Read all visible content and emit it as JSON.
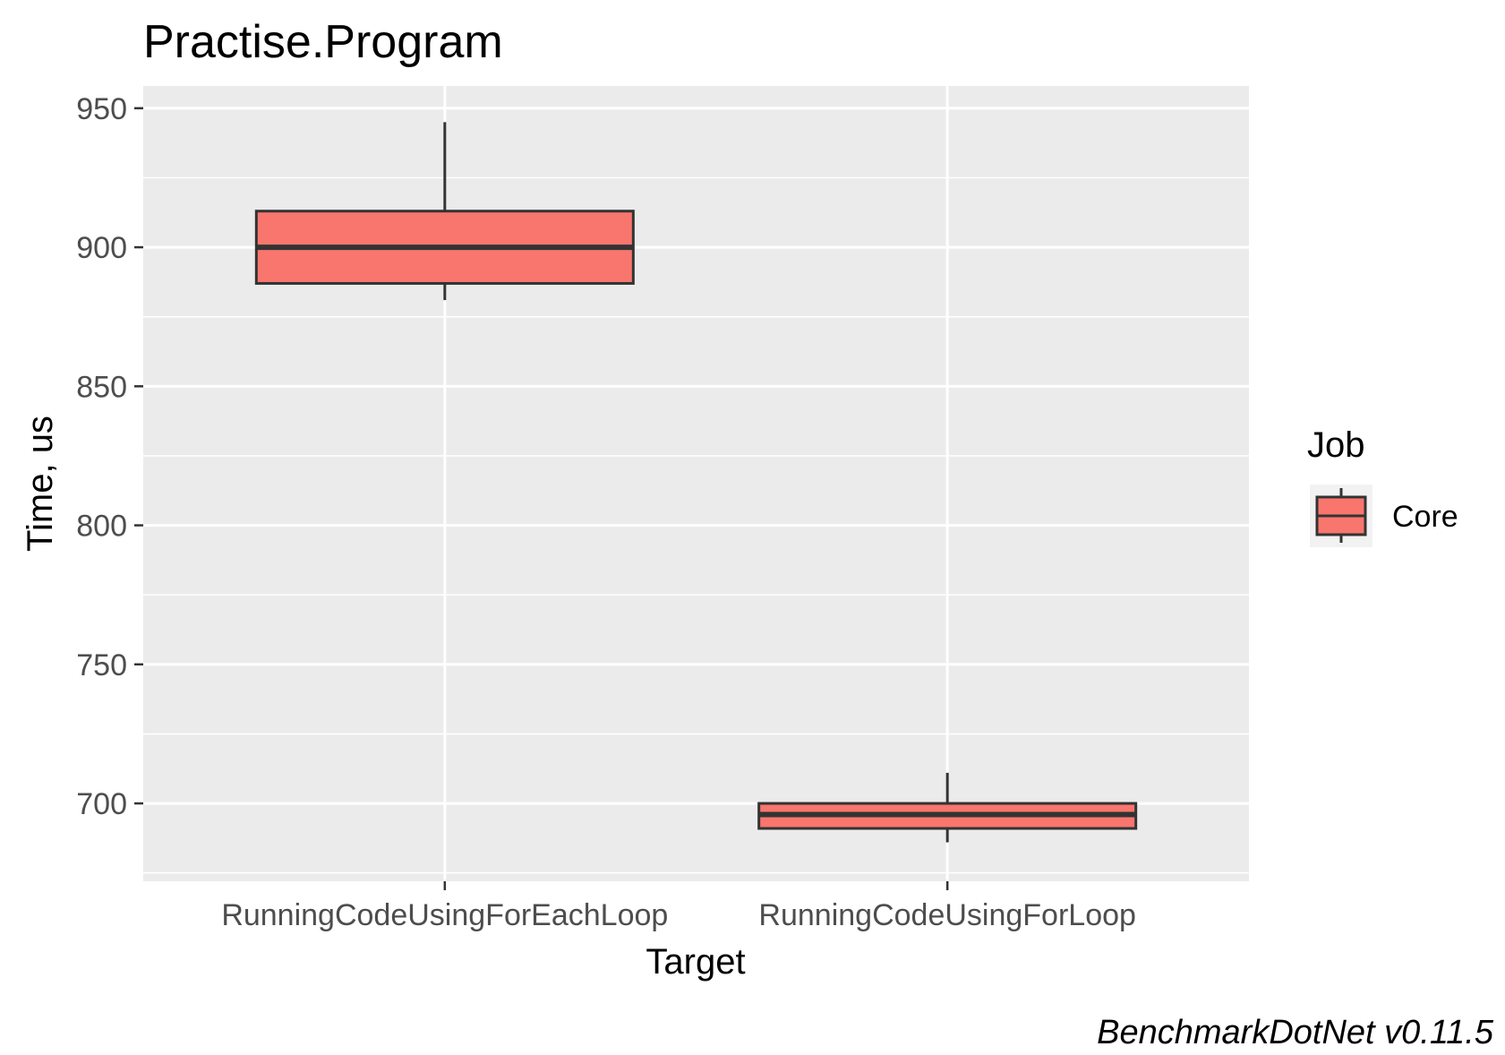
{
  "chart_data": {
    "type": "box",
    "title": "Practise.Program",
    "xlabel": "Target",
    "ylabel": "Time, us",
    "ylim": [
      672,
      958
    ],
    "y_ticks": [
      700,
      750,
      800,
      850,
      900,
      950
    ],
    "categories": [
      "RunningCodeUsingForEachLoop",
      "RunningCodeUsingForLoop"
    ],
    "series": [
      {
        "name": "Core",
        "boxes": [
          {
            "category": "RunningCodeUsingForEachLoop",
            "min": 881,
            "q1": 887,
            "median": 900,
            "q3": 913,
            "max": 945
          },
          {
            "category": "RunningCodeUsingForLoop",
            "min": 686,
            "q1": 691,
            "median": 696,
            "q3": 700,
            "max": 711
          }
        ]
      }
    ],
    "legend": {
      "title": "Job",
      "position": "right"
    },
    "caption": "BenchmarkDotNet v0.11.5",
    "grid": true,
    "colors": {
      "panel": "#ebebeb",
      "box_fill": "#f8766d",
      "box_stroke": "#333333",
      "grid": "#ffffff",
      "text": "#000000",
      "tick_text": "#4d4d4d"
    }
  }
}
